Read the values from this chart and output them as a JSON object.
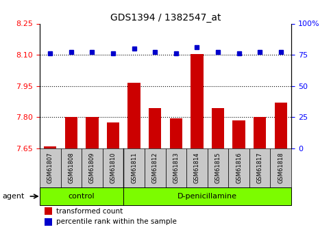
{
  "title": "GDS1394 / 1382547_at",
  "samples": [
    "GSM61807",
    "GSM61808",
    "GSM61809",
    "GSM61810",
    "GSM61811",
    "GSM61812",
    "GSM61813",
    "GSM61814",
    "GSM61815",
    "GSM61816",
    "GSM61817",
    "GSM61818"
  ],
  "red_values": [
    7.66,
    7.8,
    7.8,
    7.775,
    7.965,
    7.845,
    7.795,
    8.105,
    7.845,
    7.785,
    7.8,
    7.87
  ],
  "blue_values": [
    76,
    77,
    77,
    76,
    80,
    77,
    76,
    81,
    77,
    76,
    77,
    77
  ],
  "ylim_left": [
    7.65,
    8.25
  ],
  "ylim_right": [
    0,
    100
  ],
  "yticks_left": [
    7.65,
    7.8,
    7.95,
    8.1,
    8.25
  ],
  "yticks_right": [
    0,
    25,
    50,
    75,
    100
  ],
  "hlines": [
    7.8,
    7.95,
    8.1
  ],
  "control_samples": 4,
  "control_label": "control",
  "treatment_label": "D-penicillamine",
  "agent_label": "agent",
  "legend_red": "transformed count",
  "legend_blue": "percentile rank within the sample",
  "bar_color": "#cc0000",
  "dot_color": "#0000cc",
  "sample_box_color": "#c8c8c8",
  "group_box_color": "#7cfc00",
  "bar_width": 0.6,
  "bar_base": 7.65
}
